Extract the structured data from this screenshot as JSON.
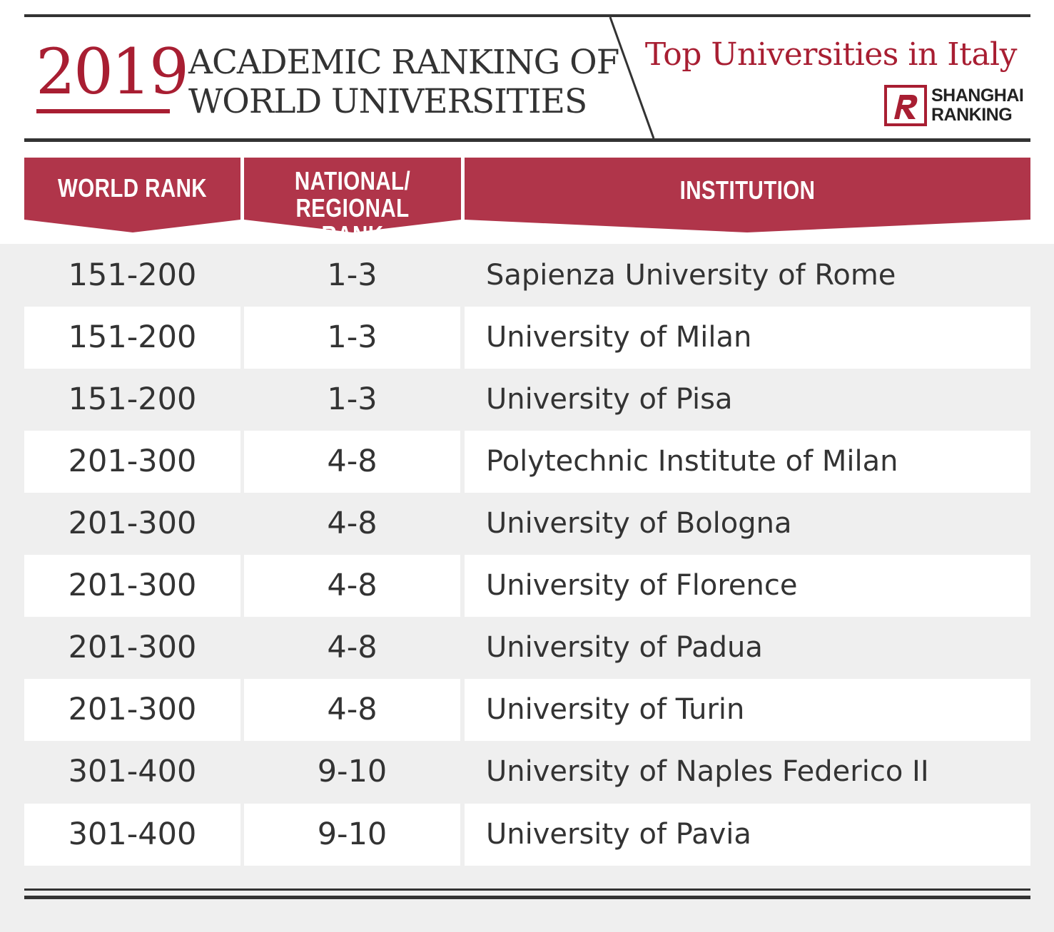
{
  "header": {
    "year": "2019",
    "title_line1": "ACADEMIC RANKING OF",
    "title_line2": "WORLD UNIVERSITIES",
    "subtitle": "Top Universities in Italy",
    "logo_line1": "SHANGHAI",
    "logo_line2": "RANKING"
  },
  "colors": {
    "accent": "#a81e32",
    "header_band": "#b0354a",
    "text": "#333333",
    "stripe": "#efefef"
  },
  "table": {
    "columns": [
      "WORLD RANK",
      "NATIONAL/ REGIONAL",
      "RANK",
      "INSTITUTION"
    ],
    "rows": [
      {
        "world_rank": "151-200",
        "national_rank": "1-3",
        "institution": "Sapienza University of Rome"
      },
      {
        "world_rank": "151-200",
        "national_rank": "1-3",
        "institution": "University of Milan"
      },
      {
        "world_rank": "151-200",
        "national_rank": "1-3",
        "institution": "University of Pisa"
      },
      {
        "world_rank": "201-300",
        "national_rank": "4-8",
        "institution": "Polytechnic Institute of Milan"
      },
      {
        "world_rank": "201-300",
        "national_rank": "4-8",
        "institution": "University of Bologna"
      },
      {
        "world_rank": "201-300",
        "national_rank": "4-8",
        "institution": "University of Florence"
      },
      {
        "world_rank": "201-300",
        "national_rank": "4-8",
        "institution": "University of Padua"
      },
      {
        "world_rank": "201-300",
        "national_rank": "4-8",
        "institution": "University of Turin"
      },
      {
        "world_rank": "301-400",
        "national_rank": "9-10",
        "institution": "University of Naples Federico II"
      },
      {
        "world_rank": "301-400",
        "national_rank": "9-10",
        "institution": "University of Pavia"
      }
    ]
  }
}
